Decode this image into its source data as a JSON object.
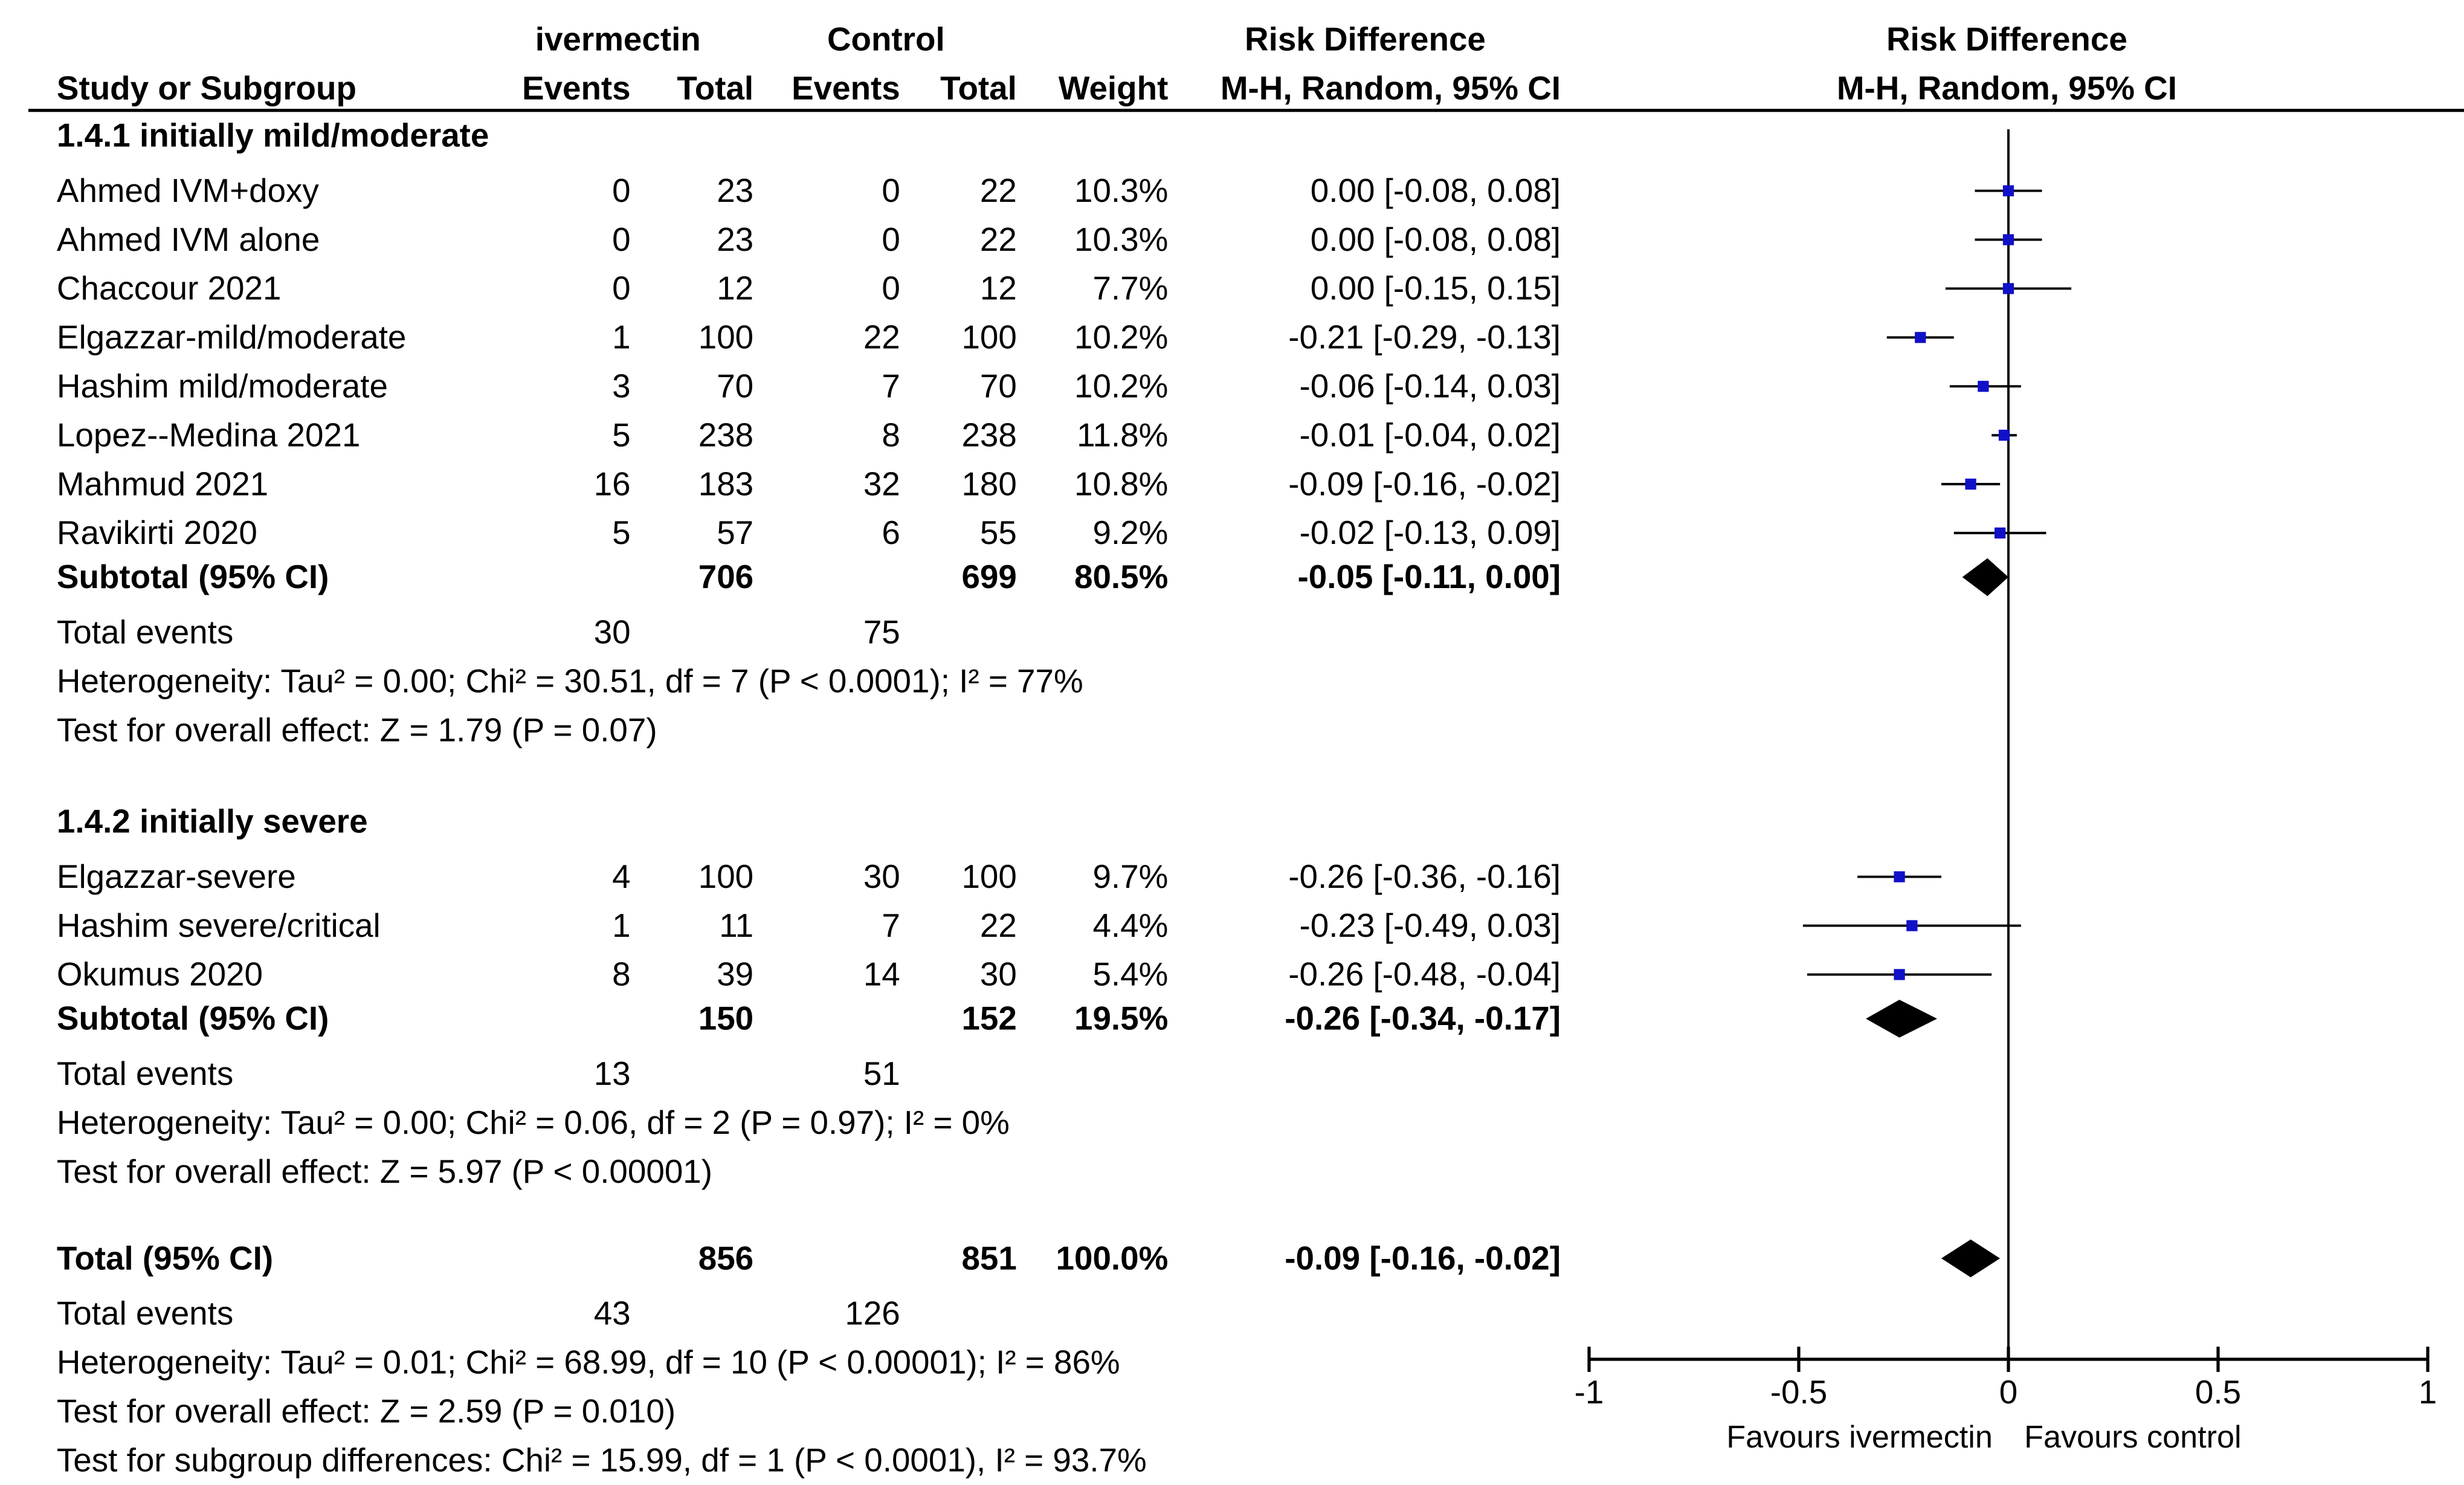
{
  "header": {
    "group1_name": "ivermectin",
    "group2_name": "Control",
    "effect_header_1": "Risk Difference",
    "effect_header_2": "M-H, Random, 95% CI",
    "plot_header_1": "Risk Difference",
    "plot_header_2": "M-H, Random, 95% CI",
    "col_study": "Study or Subgroup",
    "col_events_1": "Events",
    "col_total_1": "Total",
    "col_events_2": "Events",
    "col_total_2": "Total",
    "col_weight": "Weight"
  },
  "chart_data": {
    "type": "forest",
    "measure": "Risk Difference (M-H, Random, 95% CI)",
    "axis": {
      "xlim": [
        -1,
        1
      ],
      "ticks": [
        -1,
        -0.5,
        0,
        0.5,
        1
      ],
      "tick_labels": [
        "-1",
        "-0.5",
        "0",
        "0.5",
        "1"
      ],
      "left_label": "Favours ivermectin",
      "right_label": "Favours control"
    },
    "subgroups": [
      {
        "title": "1.4.1 initially mild/moderate",
        "studies": [
          {
            "name": "Ahmed IVM+doxy",
            "e1": "0",
            "t1": "23",
            "e2": "0",
            "t2": "22",
            "weight": "10.3%",
            "ci_text": "0.00 [-0.08, 0.08]",
            "est": 0.0,
            "lo": -0.08,
            "hi": 0.08
          },
          {
            "name": "Ahmed IVM alone",
            "e1": "0",
            "t1": "23",
            "e2": "0",
            "t2": "22",
            "weight": "10.3%",
            "ci_text": "0.00 [-0.08, 0.08]",
            "est": 0.0,
            "lo": -0.08,
            "hi": 0.08
          },
          {
            "name": "Chaccour 2021",
            "e1": "0",
            "t1": "12",
            "e2": "0",
            "t2": "12",
            "weight": "7.7%",
            "ci_text": "0.00 [-0.15, 0.15]",
            "est": 0.0,
            "lo": -0.15,
            "hi": 0.15
          },
          {
            "name": "Elgazzar-mild/moderate",
            "e1": "1",
            "t1": "100",
            "e2": "22",
            "t2": "100",
            "weight": "10.2%",
            "ci_text": "-0.21 [-0.29, -0.13]",
            "est": -0.21,
            "lo": -0.29,
            "hi": -0.13
          },
          {
            "name": "Hashim mild/moderate",
            "e1": "3",
            "t1": "70",
            "e2": "7",
            "t2": "70",
            "weight": "10.2%",
            "ci_text": "-0.06 [-0.14, 0.03]",
            "est": -0.06,
            "lo": -0.14,
            "hi": 0.03
          },
          {
            "name": "Lopez--Medina 2021",
            "e1": "5",
            "t1": "238",
            "e2": "8",
            "t2": "238",
            "weight": "11.8%",
            "ci_text": "-0.01 [-0.04, 0.02]",
            "est": -0.01,
            "lo": -0.04,
            "hi": 0.02
          },
          {
            "name": "Mahmud 2021",
            "e1": "16",
            "t1": "183",
            "e2": "32",
            "t2": "180",
            "weight": "10.8%",
            "ci_text": "-0.09 [-0.16, -0.02]",
            "est": -0.09,
            "lo": -0.16,
            "hi": -0.02
          },
          {
            "name": "Ravikirti 2020",
            "e1": "5",
            "t1": "57",
            "e2": "6",
            "t2": "55",
            "weight": "9.2%",
            "ci_text": "-0.02 [-0.13, 0.09]",
            "est": -0.02,
            "lo": -0.13,
            "hi": 0.09
          }
        ],
        "subtotal": {
          "label": "Subtotal (95% CI)",
          "t1": "706",
          "t2": "699",
          "weight": "80.5%",
          "ci_text": "-0.05 [-0.11, 0.00]",
          "est": -0.05,
          "lo": -0.11,
          "hi": 0.0
        },
        "total_events": {
          "label": "Total events",
          "e1": "30",
          "e2": "75"
        },
        "heterogeneity": "Heterogeneity: Tau² = 0.00; Chi² = 30.51, df = 7 (P < 0.0001); I² = 77%",
        "overall_effect": "Test for overall effect: Z = 1.79 (P = 0.07)"
      },
      {
        "title": "1.4.2 initially severe",
        "studies": [
          {
            "name": "Elgazzar-severe",
            "e1": "4",
            "t1": "100",
            "e2": "30",
            "t2": "100",
            "weight": "9.7%",
            "ci_text": "-0.26 [-0.36, -0.16]",
            "est": -0.26,
            "lo": -0.36,
            "hi": -0.16
          },
          {
            "name": "Hashim severe/critical",
            "e1": "1",
            "t1": "11",
            "e2": "7",
            "t2": "22",
            "weight": "4.4%",
            "ci_text": "-0.23 [-0.49, 0.03]",
            "est": -0.23,
            "lo": -0.49,
            "hi": 0.03
          },
          {
            "name": "Okumus 2020",
            "e1": "8",
            "t1": "39",
            "e2": "14",
            "t2": "30",
            "weight": "5.4%",
            "ci_text": "-0.26 [-0.48, -0.04]",
            "est": -0.26,
            "lo": -0.48,
            "hi": -0.04
          }
        ],
        "subtotal": {
          "label": "Subtotal (95% CI)",
          "t1": "150",
          "t2": "152",
          "weight": "19.5%",
          "ci_text": "-0.26 [-0.34, -0.17]",
          "est": -0.26,
          "lo": -0.34,
          "hi": -0.17
        },
        "total_events": {
          "label": "Total events",
          "e1": "13",
          "e2": "51"
        },
        "heterogeneity": "Heterogeneity: Tau² = 0.00; Chi² = 0.06, df = 2 (P = 0.97); I² = 0%",
        "overall_effect": "Test for overall effect: Z = 5.97 (P < 0.00001)"
      }
    ],
    "overall": {
      "label": "Total (95% CI)",
      "t1": "856",
      "t2": "851",
      "weight": "100.0%",
      "ci_text": "-0.09 [-0.16, -0.02]",
      "est": -0.09,
      "lo": -0.16,
      "hi": -0.02,
      "total_events": {
        "label": "Total events",
        "e1": "43",
        "e2": "126"
      },
      "heterogeneity": "Heterogeneity: Tau² = 0.01; Chi² = 68.99, df = 10 (P < 0.00001); I² = 86%",
      "overall_effect": "Test for overall effect: Z = 2.59 (P = 0.010)",
      "subgroup_diff": "Test for subgroup differences: Chi² = 15.99, df = 1 (P < 0.0001), I² = 93.7%"
    }
  }
}
